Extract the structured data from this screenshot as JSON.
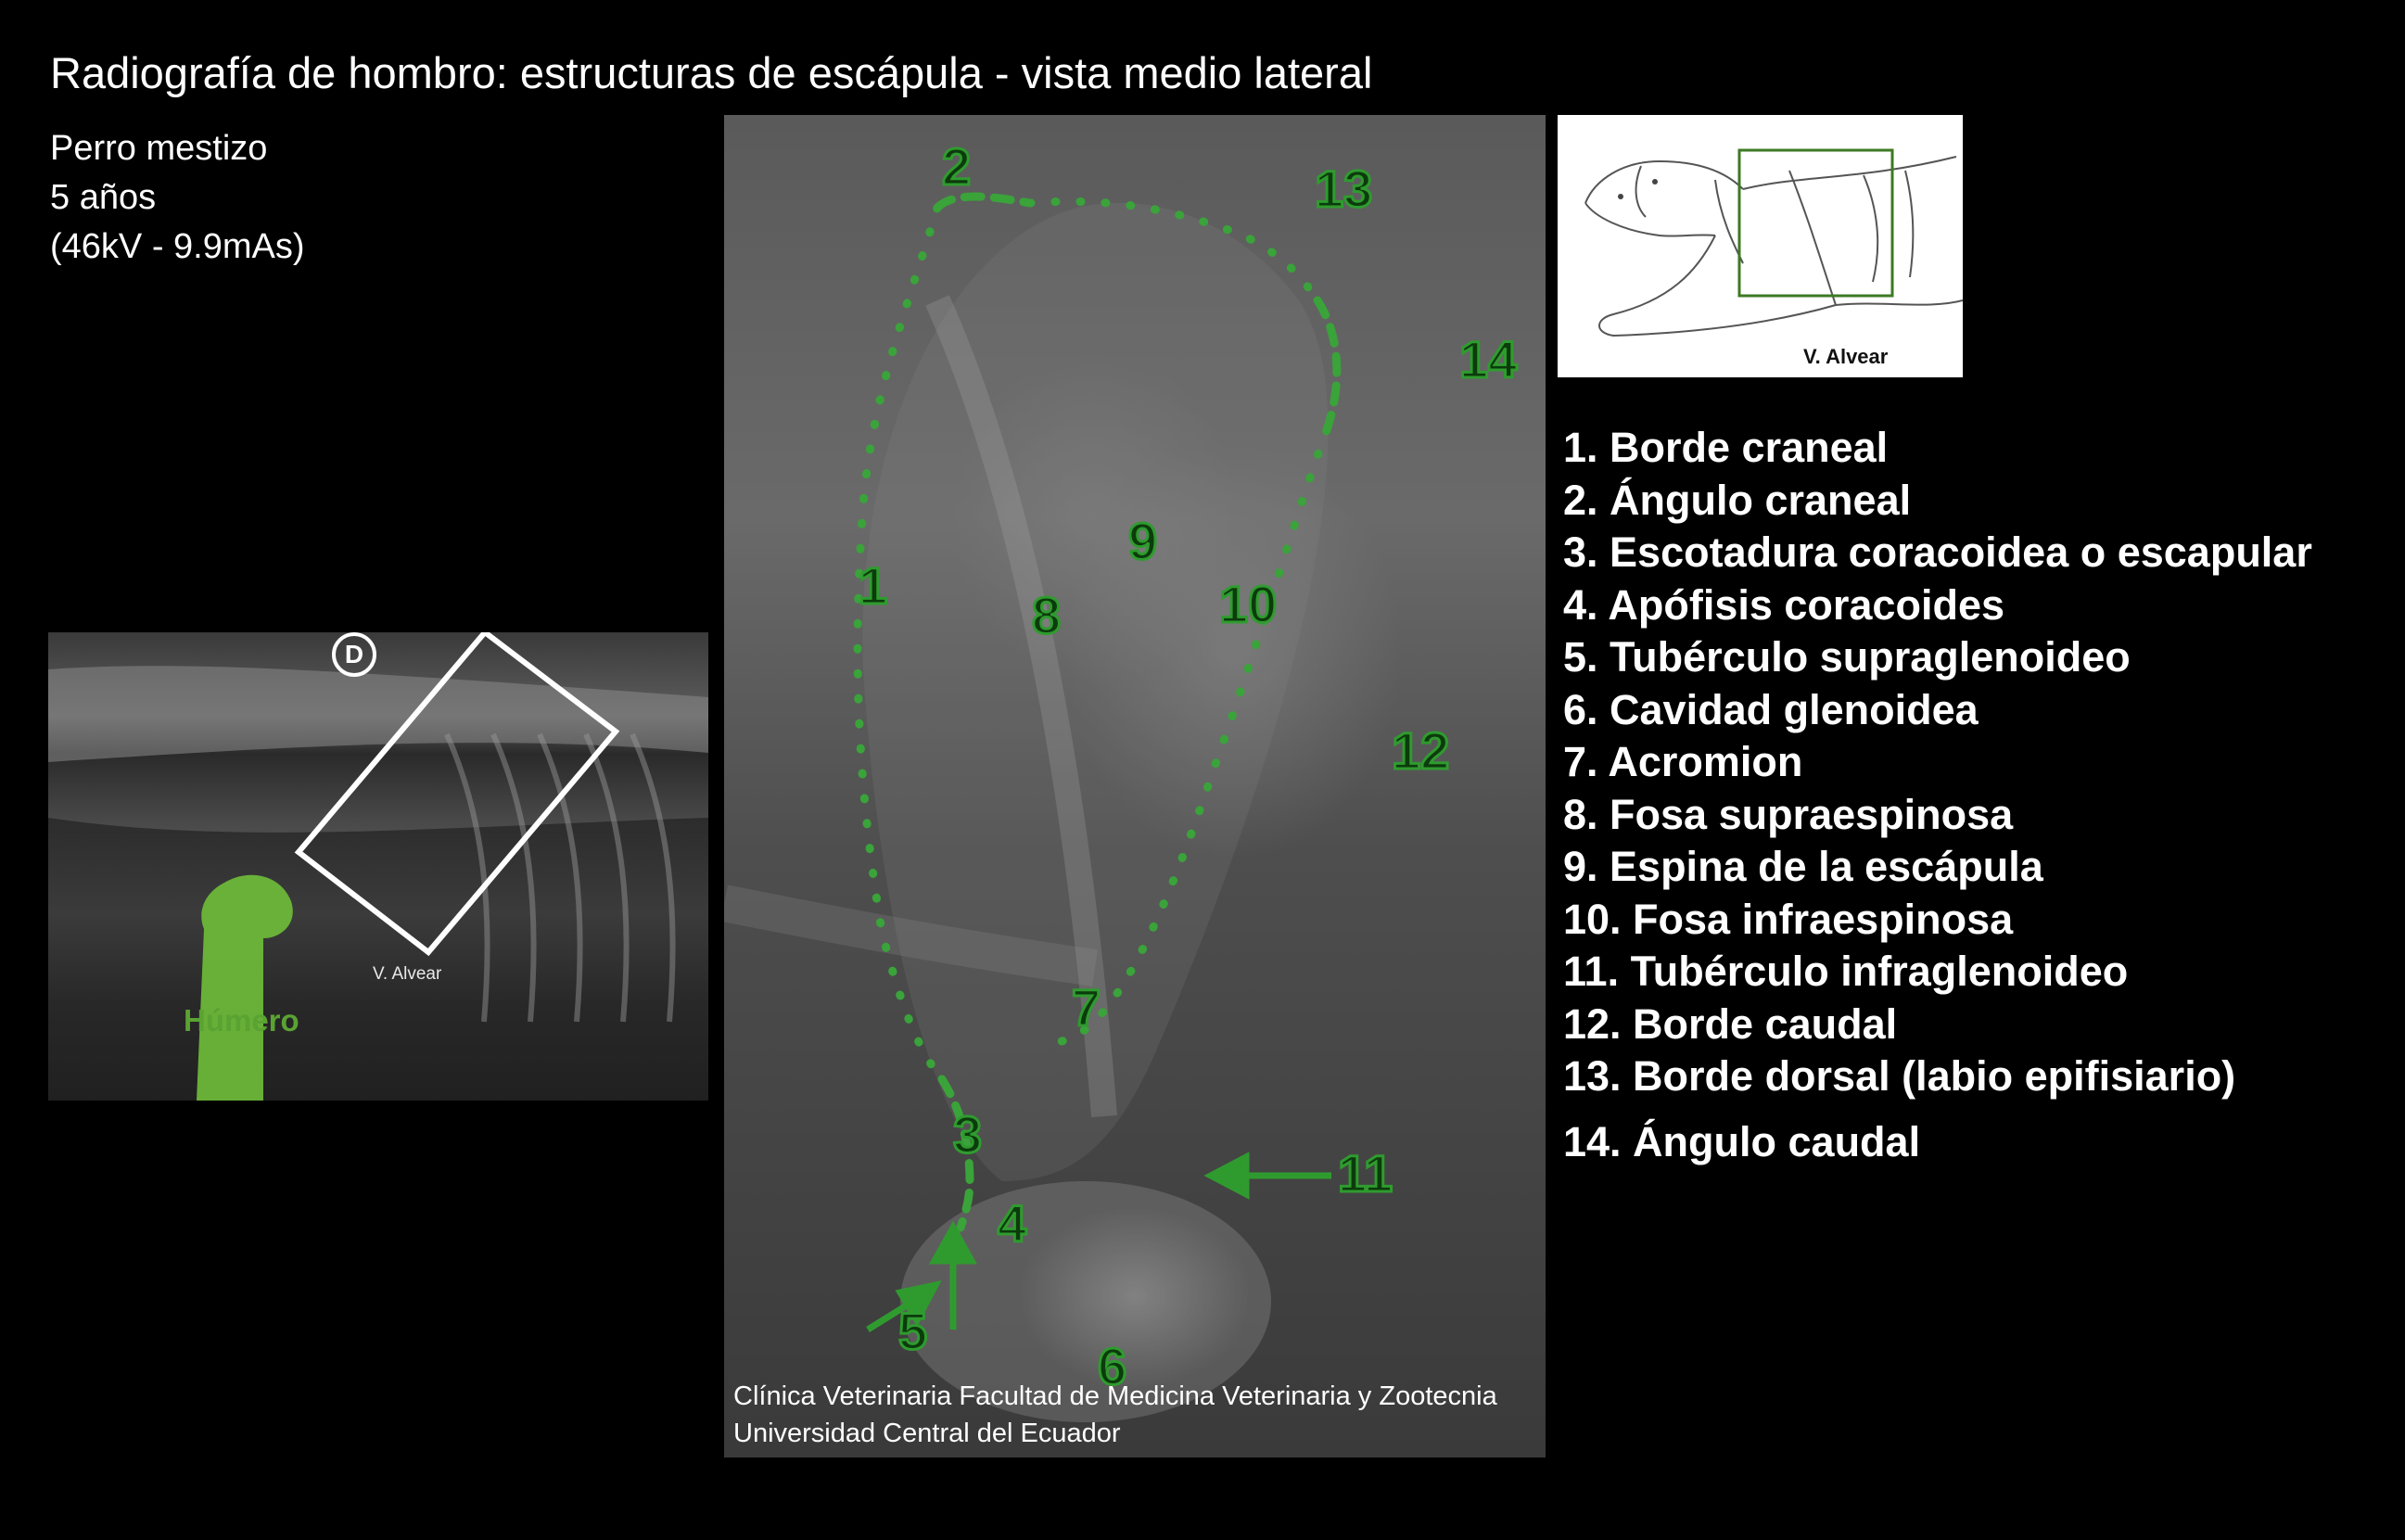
{
  "title": "Radiografía de hombro: estructuras de escápula - vista medio lateral",
  "patient": {
    "line1": "Perro mestizo",
    "line2": "5 años",
    "line3": "(46kV - 9.9mAs)"
  },
  "thumbnail": {
    "badge": "D",
    "credit": "V. Alvear",
    "humerus_label": "Húmero"
  },
  "main_xray": {
    "labels": [
      {
        "text": "1"
      },
      {
        "text": "2"
      },
      {
        "text": "3"
      },
      {
        "text": "4"
      },
      {
        "text": "5"
      },
      {
        "text": "6"
      },
      {
        "text": "7"
      },
      {
        "text": "8"
      },
      {
        "text": "9"
      },
      {
        "text": "10"
      },
      {
        "text": "11"
      },
      {
        "text": "12"
      },
      {
        "text": "13"
      },
      {
        "text": "14"
      }
    ],
    "credit_line1": "Clínica Veterinaria Facultad de Medicina Veterinaria y Zootecnia",
    "credit_line2": "Universidad Central del Ecuador"
  },
  "dog_diagram": {
    "credit": "V. Alvear"
  },
  "legend": [
    "1. Borde craneal",
    "2. Ángulo craneal",
    "3. Escotadura coracoidea o escapular",
    "4. Apófisis coracoides",
    "5. Tubérculo supraglenoideo",
    "6. Cavidad glenoidea",
    "7. Acromion",
    "8. Fosa supraespinosa",
    "9. Espina de la escápula",
    "10. Fosa infraespinosa",
    "11. Tubérculo infraglenoideo",
    "12. Borde caudal",
    "13. Borde dorsal (labio epifisiario)",
    "14. Ángulo caudal"
  ],
  "colors": {
    "accent_green": "#2f9b2f",
    "label_fill": "#0c3b0c",
    "humerus_green": "#5aa332"
  }
}
